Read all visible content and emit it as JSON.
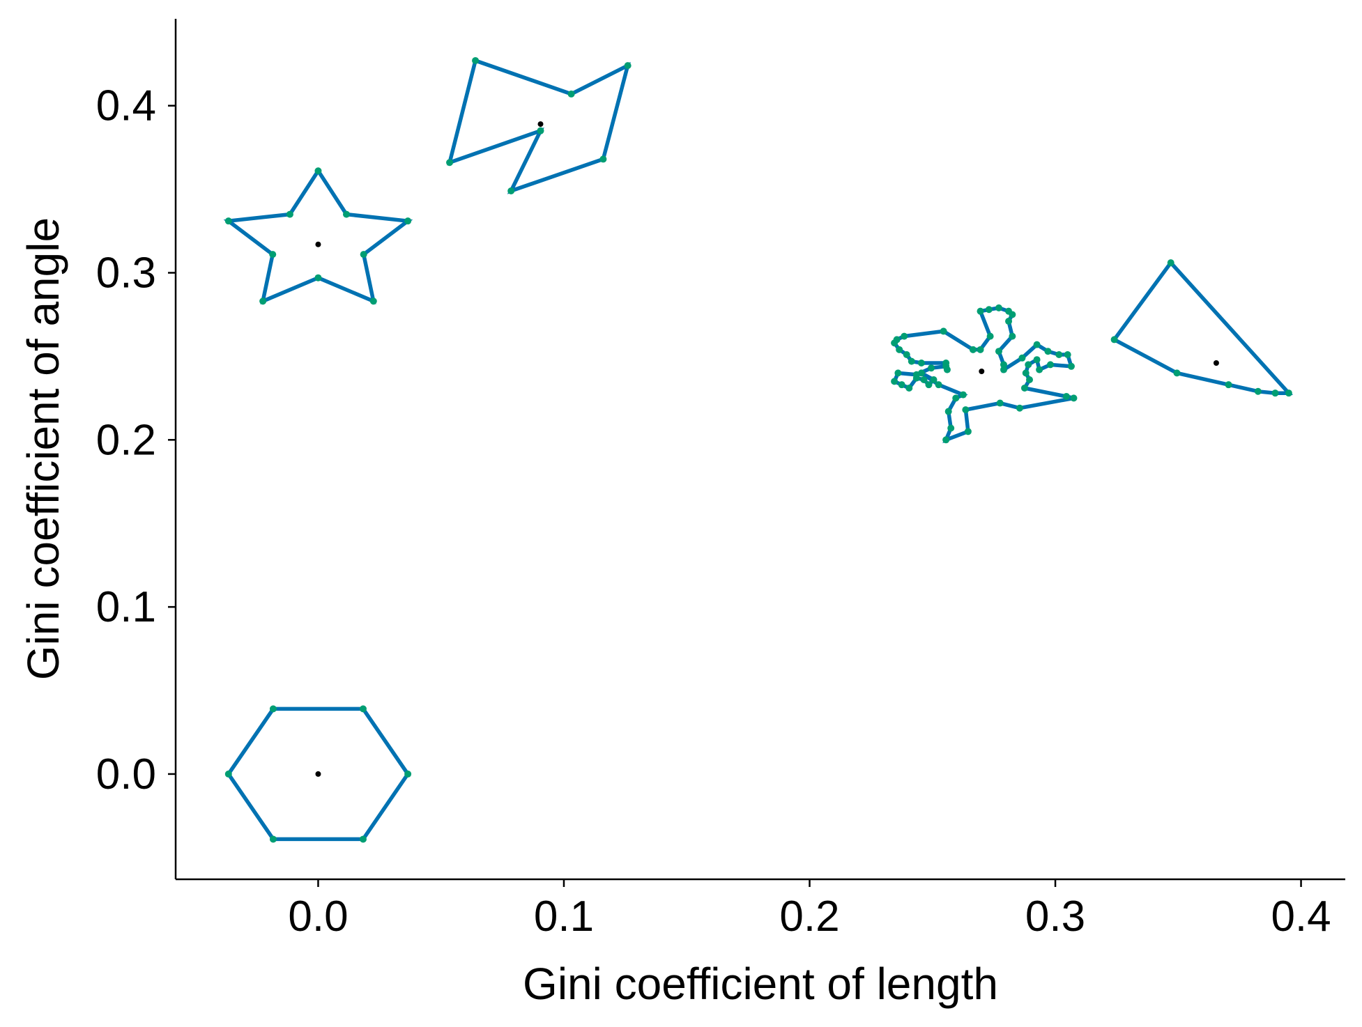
{
  "chart_data": {
    "type": "scatter",
    "title": "",
    "xlabel": "Gini coefficient of length",
    "ylabel": "Gini coefficient of angle",
    "xlim": [
      -0.058,
      0.418
    ],
    "ylim": [
      -0.063,
      0.452
    ],
    "xticks": [
      0.0,
      0.1,
      0.2,
      0.3,
      0.4
    ],
    "yticks": [
      0.0,
      0.1,
      0.2,
      0.3,
      0.4
    ],
    "xtick_labels": [
      "0.0",
      "0.1",
      "0.2",
      "0.3",
      "0.4"
    ],
    "ytick_labels": [
      "0.0",
      "0.1",
      "0.2",
      "0.3",
      "0.4"
    ],
    "grid": false,
    "outline_color": "#0072b2",
    "vertex_color": "#009e73",
    "centroid_color": "#000000",
    "shapes": [
      {
        "shape": "hexagon",
        "centroid": [
          0.0,
          0.0
        ],
        "vertices": [
          [
            -0.0365,
            0.0
          ],
          [
            -0.0183,
            -0.039
          ],
          [
            0.0183,
            -0.039
          ],
          [
            0.0365,
            0.0
          ],
          [
            0.0183,
            0.039
          ],
          [
            -0.0183,
            0.039
          ]
        ]
      },
      {
        "shape": "star",
        "centroid": [
          0.0,
          0.317
        ],
        "vertices": [
          [
            0.0,
            0.361
          ],
          [
            0.0115,
            0.335
          ],
          [
            0.0365,
            0.331
          ],
          [
            0.0185,
            0.311
          ],
          [
            0.0225,
            0.283
          ],
          [
            0.0,
            0.297
          ],
          [
            -0.0225,
            0.283
          ],
          [
            -0.0185,
            0.311
          ],
          [
            -0.0365,
            0.331
          ],
          [
            -0.0115,
            0.335
          ]
        ]
      },
      {
        "shape": "irregular",
        "centroid": [
          0.0905,
          0.389
        ],
        "vertices": [
          [
            0.064,
            0.427
          ],
          [
            0.103,
            0.407
          ],
          [
            0.126,
            0.424
          ],
          [
            0.116,
            0.368
          ],
          [
            0.0785,
            0.349
          ],
          [
            0.0905,
            0.385
          ],
          [
            0.0535,
            0.366
          ]
        ]
      },
      {
        "shape": "leaf",
        "centroid": [
          0.27,
          0.241
        ],
        "vertices": [
          [
            0.2355,
            0.26
          ],
          [
            0.2385,
            0.262
          ],
          [
            0.2545,
            0.265
          ],
          [
            0.2665,
            0.254
          ],
          [
            0.2695,
            0.254
          ],
          [
            0.2735,
            0.262
          ],
          [
            0.2695,
            0.277
          ],
          [
            0.273,
            0.278
          ],
          [
            0.277,
            0.279
          ],
          [
            0.281,
            0.277
          ],
          [
            0.2825,
            0.275
          ],
          [
            0.281,
            0.271
          ],
          [
            0.2825,
            0.262
          ],
          [
            0.277,
            0.253
          ],
          [
            0.279,
            0.245
          ],
          [
            0.279,
            0.242
          ],
          [
            0.2865,
            0.249
          ],
          [
            0.2925,
            0.257
          ],
          [
            0.297,
            0.253
          ],
          [
            0.3015,
            0.251
          ],
          [
            0.305,
            0.251
          ],
          [
            0.3065,
            0.244
          ],
          [
            0.298,
            0.245
          ],
          [
            0.2935,
            0.242
          ],
          [
            0.2925,
            0.248
          ],
          [
            0.289,
            0.245
          ],
          [
            0.288,
            0.24
          ],
          [
            0.2895,
            0.236
          ],
          [
            0.2875,
            0.231
          ],
          [
            0.3045,
            0.226
          ],
          [
            0.3075,
            0.225
          ],
          [
            0.2855,
            0.219
          ],
          [
            0.2775,
            0.222
          ],
          [
            0.2635,
            0.218
          ],
          [
            0.2645,
            0.205
          ],
          [
            0.2555,
            0.2
          ],
          [
            0.2575,
            0.207
          ],
          [
            0.2565,
            0.217
          ],
          [
            0.2595,
            0.225
          ],
          [
            0.2625,
            0.227
          ],
          [
            0.2525,
            0.233
          ],
          [
            0.2455,
            0.24
          ],
          [
            0.2505,
            0.236
          ],
          [
            0.2485,
            0.233
          ],
          [
            0.2465,
            0.236
          ],
          [
            0.2435,
            0.237
          ],
          [
            0.2405,
            0.231
          ],
          [
            0.2375,
            0.233
          ],
          [
            0.2345,
            0.235
          ],
          [
            0.236,
            0.24
          ],
          [
            0.2435,
            0.239
          ],
          [
            0.2495,
            0.243
          ],
          [
            0.2555,
            0.244
          ],
          [
            0.256,
            0.242
          ],
          [
            0.2555,
            0.246
          ],
          [
            0.2455,
            0.246
          ],
          [
            0.2415,
            0.247
          ],
          [
            0.2395,
            0.251
          ],
          [
            0.2365,
            0.254
          ],
          [
            0.2345,
            0.258
          ]
        ]
      },
      {
        "shape": "triangle",
        "centroid": [
          0.3655,
          0.246
        ],
        "vertices": [
          [
            0.347,
            0.306
          ],
          [
            0.395,
            0.228
          ],
          [
            0.3895,
            0.228
          ],
          [
            0.3825,
            0.229
          ],
          [
            0.3705,
            0.233
          ],
          [
            0.3495,
            0.24
          ],
          [
            0.324,
            0.26
          ]
        ]
      }
    ]
  }
}
